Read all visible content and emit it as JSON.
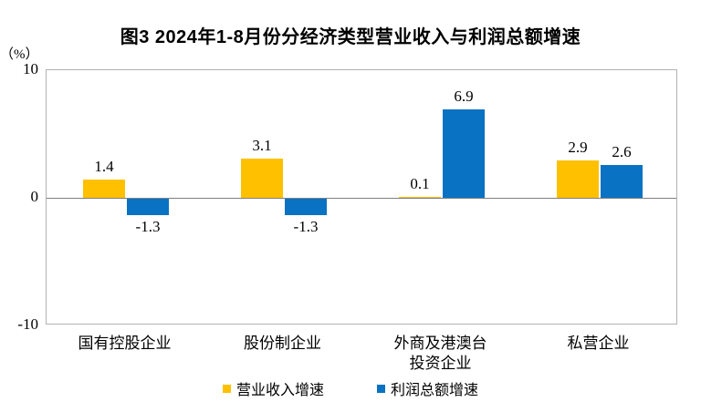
{
  "title": "图3 2024年1-8月份分经济类型营业收入与利润总额增速",
  "y_axis": {
    "unit_label": "（%）",
    "ticks": [
      {
        "label": "10",
        "value": 10
      },
      {
        "label": "0",
        "value": 0
      },
      {
        "label": "-10",
        "value": -10
      }
    ]
  },
  "chart_data": {
    "type": "bar",
    "title": "图3 2024年1-8月份分经济类型营业收入与利润总额增速",
    "categories": [
      "国有控股企业",
      "股份制企业",
      "外商及港澳台\n投资企业",
      "私营企业"
    ],
    "series": [
      {
        "name": "营业收入增速",
        "color": "#FFC000",
        "values": [
          1.4,
          3.1,
          0.1,
          2.9
        ]
      },
      {
        "name": "利润总额增速",
        "color": "#0A72C3",
        "values": [
          -1.3,
          -1.3,
          6.9,
          2.6
        ]
      }
    ],
    "ylabel": "（%）",
    "ylim": [
      -10,
      10
    ],
    "grid": false,
    "legend_position": "bottom",
    "colors": {
      "border": "#b2b2b2",
      "zero_line": "#7f7f7f",
      "text": "#000000"
    }
  }
}
